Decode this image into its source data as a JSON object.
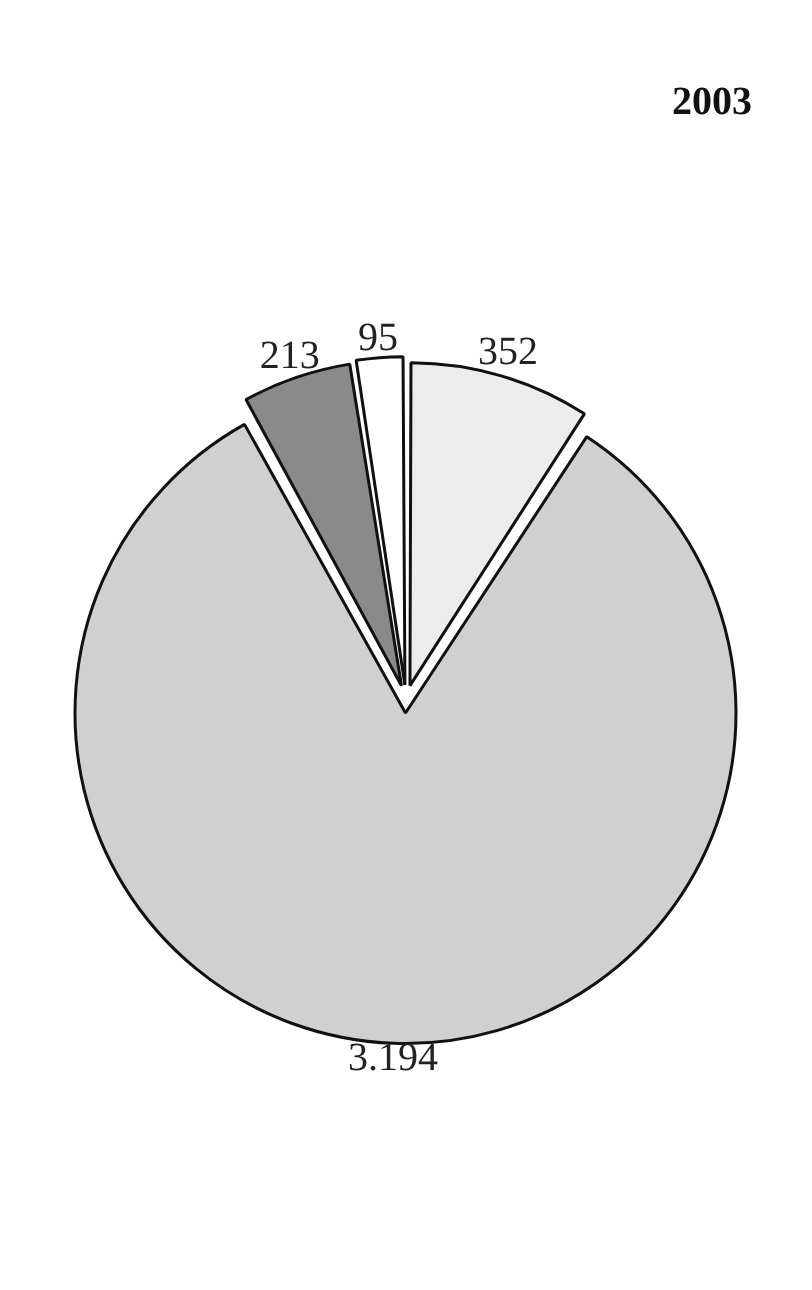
{
  "chart_data": {
    "type": "pie",
    "title": "2003",
    "categories": [
      null,
      null,
      null,
      null
    ],
    "values": [
      352,
      3194,
      213,
      95
    ],
    "value_labels": [
      "352",
      "3.194",
      "213",
      "95"
    ],
    "colors": [
      "#ececec",
      "#d0d0d0",
      "#8a8a8a",
      "#ffffff"
    ]
  }
}
